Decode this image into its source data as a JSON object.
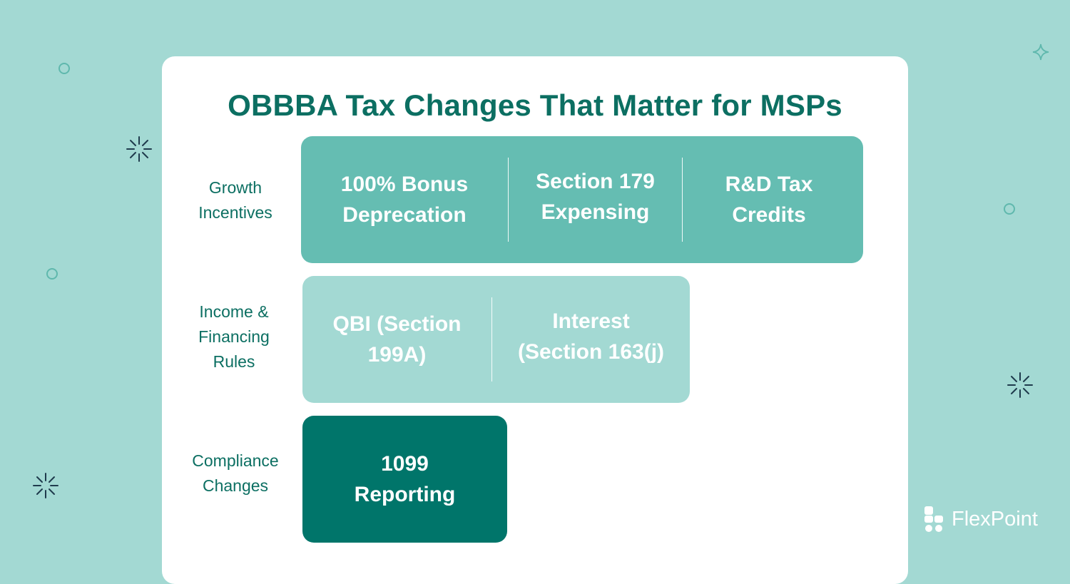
{
  "title": "OBBBA Tax Changes That Matter for MSPs",
  "rows": [
    {
      "label_lines": [
        "Growth",
        "Incentives"
      ],
      "items": [
        {
          "lines": [
            "100% Bonus",
            "Deprecation"
          ]
        },
        {
          "lines": [
            "Section 179",
            "Expensing"
          ]
        },
        {
          "lines": [
            "R&D Tax",
            "Credits"
          ]
        }
      ]
    },
    {
      "label_lines": [
        "Income &",
        "Financing",
        "Rules"
      ],
      "items": [
        {
          "lines": [
            "QBI (Section",
            "199A)"
          ]
        },
        {
          "lines": [
            "Interest",
            "(Section 163(j)"
          ]
        }
      ]
    },
    {
      "label_lines": [
        "Compliance",
        "Changes"
      ],
      "items": [
        {
          "lines": [
            "1099",
            "Reporting"
          ]
        }
      ]
    }
  ],
  "logo": {
    "text": "FlexPoint",
    "icon": "flexpoint-logo-icon"
  },
  "colors": {
    "background": "#a3d9d3",
    "card": "#ffffff",
    "title": "#0c6f62",
    "row1": "#65bdb2",
    "row2": "#a3d9d3",
    "row3": "#00756a"
  }
}
